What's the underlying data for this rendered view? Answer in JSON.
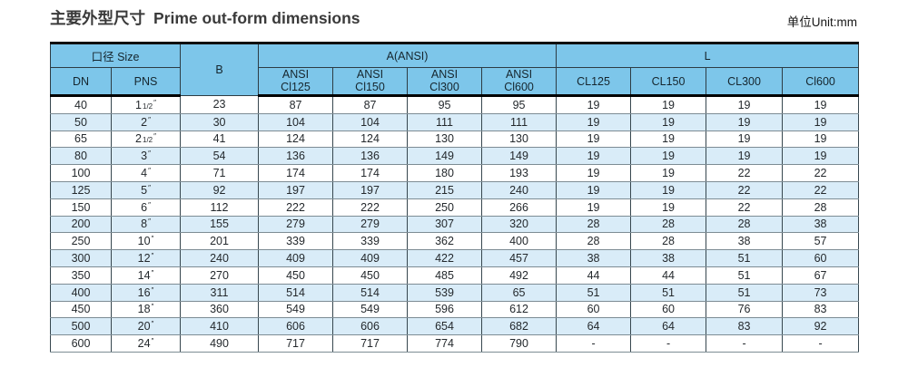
{
  "page": {
    "title_cn": "主要外型尺寸",
    "title_en": "Prime out-form dimensions",
    "unit_label": "单位Unit:mm"
  },
  "table": {
    "header": {
      "size_group": "口径 Size",
      "dn": "DN",
      "pns": "PNS",
      "b": "B",
      "a_group": "A(ANSI)",
      "a_subcols": [
        {
          "line1": "ANSI",
          "line2": "Cl125"
        },
        {
          "line1": "ANSI",
          "line2": "Cl150"
        },
        {
          "line1": "ANSI",
          "line2": "Cl300"
        },
        {
          "line1": "ANSI",
          "line2": "Cl600"
        }
      ],
      "l_group": "L",
      "l_subcols": [
        "CL125",
        "CL150",
        "CL300",
        "Cl600"
      ]
    },
    "rows": [
      {
        "dn": "40",
        "pns": {
          "main": "1",
          "frac": "1/2",
          "mark": "″"
        },
        "b": "23",
        "a": [
          "87",
          "87",
          "95",
          "95"
        ],
        "l": [
          "19",
          "19",
          "19",
          "19"
        ]
      },
      {
        "dn": "50",
        "pns": {
          "main": "2",
          "frac": "",
          "mark": "″"
        },
        "b": "30",
        "a": [
          "104",
          "104",
          "111",
          "111"
        ],
        "l": [
          "19",
          "19",
          "19",
          "19"
        ]
      },
      {
        "dn": "65",
        "pns": {
          "main": "2",
          "frac": "1/2",
          "mark": "″"
        },
        "b": "41",
        "a": [
          "124",
          "124",
          "130",
          "130"
        ],
        "l": [
          "19",
          "19",
          "19",
          "19"
        ]
      },
      {
        "dn": "80",
        "pns": {
          "main": "3",
          "frac": "",
          "mark": "″"
        },
        "b": "54",
        "a": [
          "136",
          "136",
          "149",
          "149"
        ],
        "l": [
          "19",
          "19",
          "19",
          "19"
        ]
      },
      {
        "dn": "100",
        "pns": {
          "main": "4",
          "frac": "",
          "mark": "″"
        },
        "b": "71",
        "a": [
          "174",
          "174",
          "180",
          "193"
        ],
        "l": [
          "19",
          "19",
          "22",
          "22"
        ]
      },
      {
        "dn": "125",
        "pns": {
          "main": "5",
          "frac": "",
          "mark": "″"
        },
        "b": "92",
        "a": [
          "197",
          "197",
          "215",
          "240"
        ],
        "l": [
          "19",
          "19",
          "22",
          "22"
        ]
      },
      {
        "dn": "150",
        "pns": {
          "main": "6",
          "frac": "",
          "mark": "″"
        },
        "b": "112",
        "a": [
          "222",
          "222",
          "250",
          "266"
        ],
        "l": [
          "19",
          "19",
          "22",
          "28"
        ]
      },
      {
        "dn": "200",
        "pns": {
          "main": "8",
          "frac": "",
          "mark": "″"
        },
        "b": "155",
        "a": [
          "279",
          "279",
          "307",
          "320"
        ],
        "l": [
          "28",
          "28",
          "28",
          "38"
        ]
      },
      {
        "dn": "250",
        "pns": {
          "main": "10",
          "frac": "",
          "mark": "″"
        },
        "b": "201",
        "a": [
          "339",
          "339",
          "362",
          "400"
        ],
        "l": [
          "28",
          "28",
          "38",
          "57"
        ]
      },
      {
        "dn": "300",
        "pns": {
          "main": "12",
          "frac": "",
          "mark": "″"
        },
        "b": "240",
        "a": [
          "409",
          "409",
          "422",
          "457"
        ],
        "l": [
          "38",
          "38",
          "51",
          "60"
        ]
      },
      {
        "dn": "350",
        "pns": {
          "main": "14",
          "frac": "",
          "mark": "″"
        },
        "b": "270",
        "a": [
          "450",
          "450",
          "485",
          "492"
        ],
        "l": [
          "44",
          "44",
          "51",
          "67"
        ]
      },
      {
        "dn": "400",
        "pns": {
          "main": "16",
          "frac": "",
          "mark": "″"
        },
        "b": "311",
        "a": [
          "514",
          "514",
          "539",
          "65"
        ],
        "l": [
          "51",
          "51",
          "51",
          "73"
        ]
      },
      {
        "dn": "450",
        "pns": {
          "main": "18",
          "frac": "",
          "mark": "″"
        },
        "b": "360",
        "a": [
          "549",
          "549",
          "596",
          "612"
        ],
        "l": [
          "60",
          "60",
          "76",
          "83"
        ]
      },
      {
        "dn": "500",
        "pns": {
          "main": "20",
          "frac": "",
          "mark": "″"
        },
        "b": "410",
        "a": [
          "606",
          "606",
          "654",
          "682"
        ],
        "l": [
          "64",
          "64",
          "83",
          "92"
        ]
      },
      {
        "dn": "600",
        "pns": {
          "main": "24",
          "frac": "",
          "mark": "″"
        },
        "b": "490",
        "a": [
          "717",
          "717",
          "774",
          "790"
        ],
        "l": [
          "-",
          "-",
          "-",
          "-"
        ]
      }
    ]
  },
  "colors": {
    "header_bg": "#7dc6ea",
    "row_alt_bg": "#d9ecf8",
    "row_bg": "#ffffff",
    "grid_vertical": "#37474f",
    "grid_horizontal": "#7d8c94",
    "frame": "#101010",
    "text": "#24292d"
  }
}
